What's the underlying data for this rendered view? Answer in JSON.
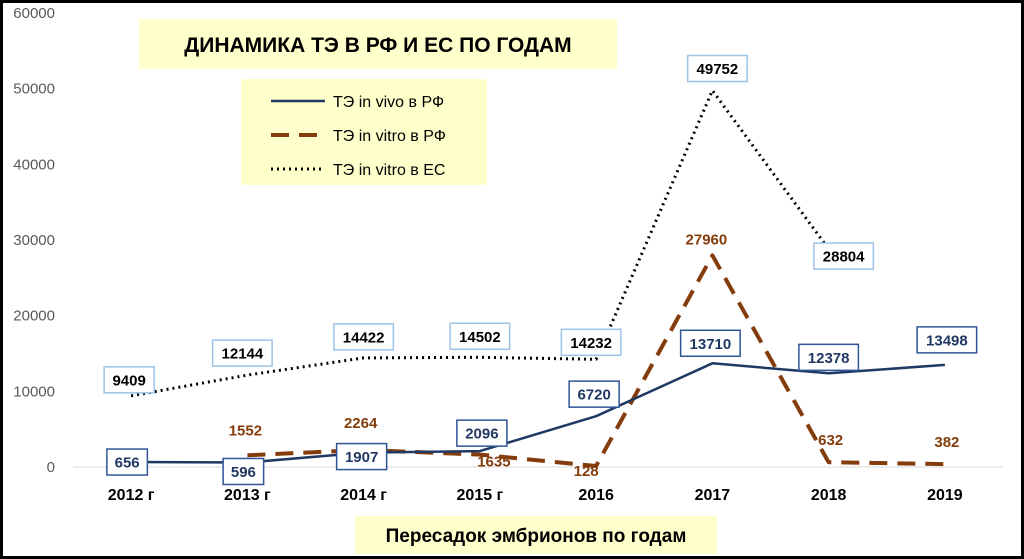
{
  "chart_data": {
    "type": "line",
    "title": "ДИНАМИКА ТЭ В РФ И ЕС ПО ГОДАМ",
    "xlabel": "Пересадок эмбрионов по годам",
    "ylabel": "",
    "categories": [
      "2012 г",
      "2013 г",
      "2014 г",
      "2015 г",
      "2016",
      "2017",
      "2018",
      "2019"
    ],
    "ylim": [
      0,
      60000
    ],
    "yticks": [
      "0",
      "10000",
      "20000",
      "30000",
      "40000",
      "50000",
      "60000"
    ],
    "yticks_values": [
      0,
      10000,
      20000,
      30000,
      40000,
      50000,
      60000
    ],
    "grid": false,
    "legend_position": "top-left",
    "series": [
      {
        "name": "ТЭ in vivo в РФ",
        "style": "solid",
        "color": "#1f3864",
        "values": [
          656,
          596,
          1907,
          2096,
          6720,
          13710,
          12378,
          13498
        ],
        "labels": [
          "656",
          "596",
          "1907",
          "2096",
          "6720",
          "13710",
          "12378",
          "13498"
        ]
      },
      {
        "name": "ТЭ in vitro в РФ",
        "style": "dashed",
        "color": "#843c0c",
        "values": [
          null,
          1552,
          2264,
          1635,
          128,
          27960,
          632,
          382
        ],
        "labels": [
          "",
          "1552",
          "2264",
          "1635",
          "128",
          "27960",
          "632",
          "382"
        ]
      },
      {
        "name": "ТЭ in vitro в ЕС",
        "style": "dotted",
        "color": "#000000",
        "values": [
          9409,
          12144,
          14422,
          14502,
          14232,
          49752,
          28804,
          null
        ],
        "labels": [
          "9409",
          "12144",
          "14422",
          "14502",
          "14232",
          "49752",
          "28804",
          ""
        ]
      }
    ],
    "colors": {
      "title_bg": "#ffffcc",
      "legend_bg": "#ffffcc",
      "xtitle_bg": "#ffffcc",
      "box_vivo": "#2f5597",
      "box_ec": "#9dc3e6",
      "text_vivo": "#203864",
      "text_vitro": "#843c0c",
      "text_ec": "#000000"
    }
  }
}
